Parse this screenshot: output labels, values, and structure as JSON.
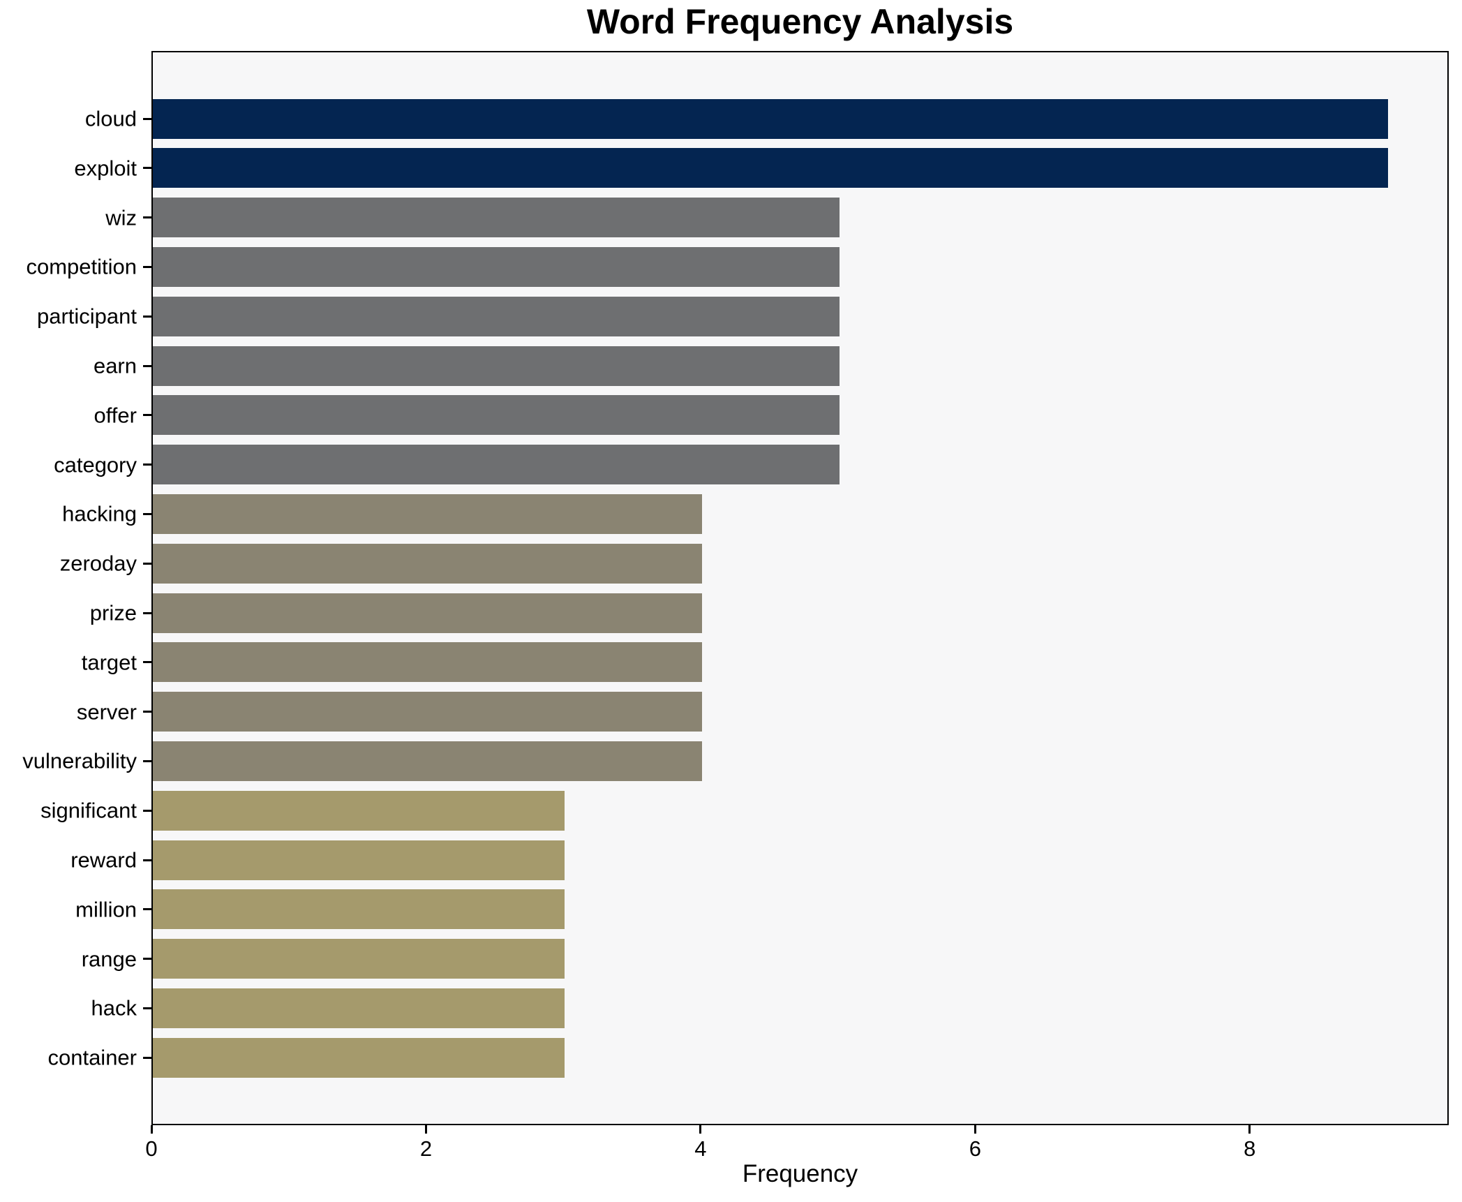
{
  "chart_data": {
    "type": "bar",
    "orientation": "horizontal",
    "title": "Word Frequency Analysis",
    "xlabel": "Frequency",
    "ylabel": "",
    "categories": [
      "cloud",
      "exploit",
      "wiz",
      "competition",
      "participant",
      "earn",
      "offer",
      "category",
      "hacking",
      "zeroday",
      "prize",
      "target",
      "server",
      "vulnerability",
      "significant",
      "reward",
      "million",
      "range",
      "hack",
      "container"
    ],
    "values": [
      9,
      9,
      5,
      5,
      5,
      5,
      5,
      5,
      4,
      4,
      4,
      4,
      4,
      4,
      3,
      3,
      3,
      3,
      3,
      3
    ],
    "bar_colors": [
      "#042551",
      "#042551",
      "#6e6f71",
      "#6e6f71",
      "#6e6f71",
      "#6e6f71",
      "#6e6f71",
      "#6e6f71",
      "#8a8472",
      "#8a8472",
      "#8a8472",
      "#8a8472",
      "#8a8472",
      "#8a8472",
      "#a59a6c",
      "#a59a6c",
      "#a59a6c",
      "#a59a6c",
      "#a59a6c",
      "#a59a6c"
    ],
    "xticks": [
      0,
      2,
      4,
      6,
      8
    ],
    "xlim": [
      0,
      9.45
    ],
    "grid": false,
    "legend": null,
    "plot_background": "#f7f7f8",
    "figure_background": "#ffffff",
    "spine_color": "#000000"
  }
}
